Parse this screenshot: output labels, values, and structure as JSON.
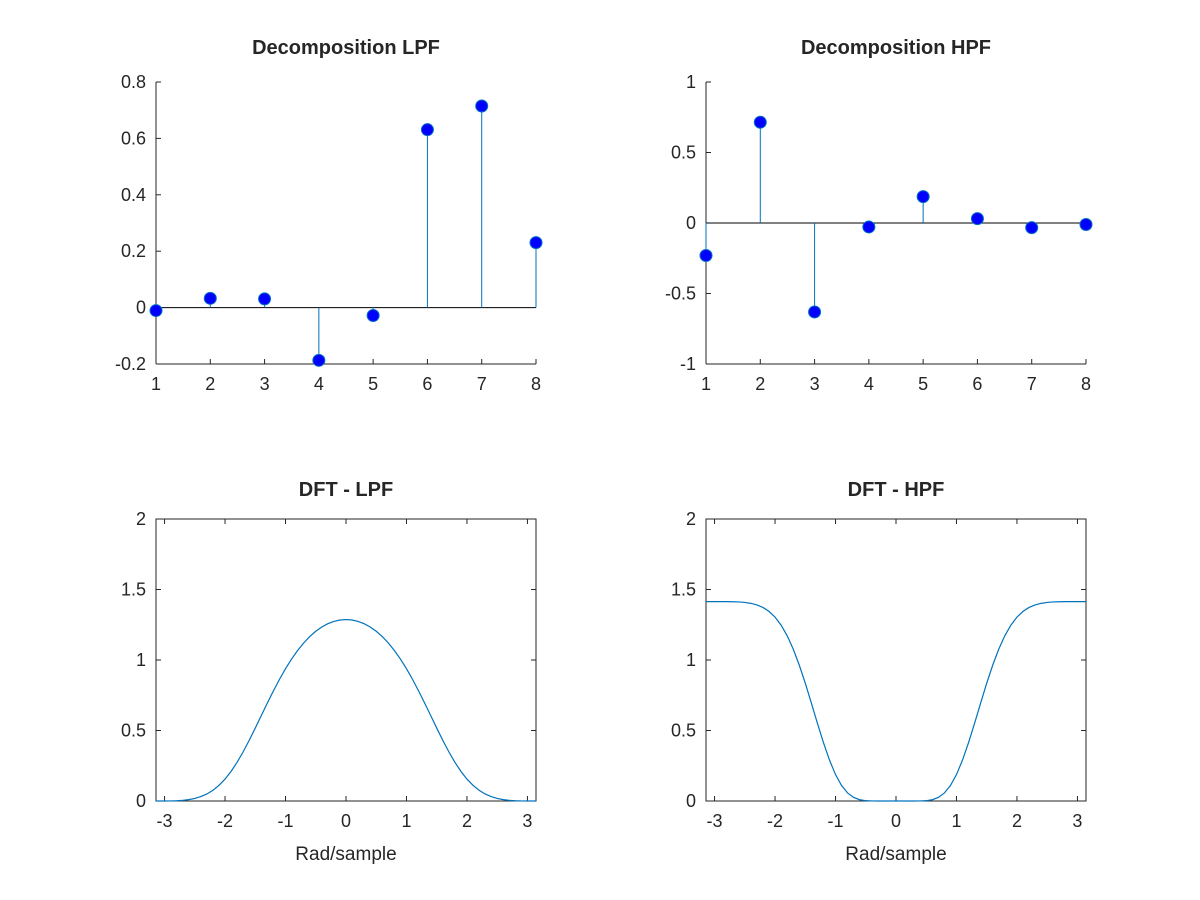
{
  "colors": {
    "line": "#0072bd",
    "marker": "#0000ff",
    "axis": "#262626",
    "background": "#ffffff"
  },
  "chart_data": [
    {
      "type": "stem",
      "title": "Decomposition LPF",
      "xlabel": "",
      "ylabel": "",
      "xlim": [
        1,
        8
      ],
      "ylim": [
        -0.2,
        0.8
      ],
      "x": [
        1,
        2,
        3,
        4,
        5,
        6,
        7,
        8
      ],
      "values": [
        -0.0106,
        0.0329,
        0.0308,
        -0.187,
        -0.028,
        0.6309,
        0.7148,
        0.2304
      ],
      "xticks": [
        "1",
        "2",
        "3",
        "4",
        "5",
        "6",
        "7",
        "8"
      ],
      "yticks": [
        "-0.2",
        "0",
        "0.2",
        "0.4",
        "0.6",
        "0.8"
      ],
      "baseline": 0,
      "grid": false
    },
    {
      "type": "stem",
      "title": "Decomposition HPF",
      "xlabel": "",
      "ylabel": "",
      "xlim": [
        1,
        8
      ],
      "ylim": [
        -1,
        1
      ],
      "x": [
        1,
        2,
        3,
        4,
        5,
        6,
        7,
        8
      ],
      "values": [
        -0.2304,
        0.7148,
        -0.6309,
        -0.028,
        0.187,
        0.0308,
        -0.0329,
        -0.0106
      ],
      "xticks": [
        "1",
        "2",
        "3",
        "4",
        "5",
        "6",
        "7",
        "8"
      ],
      "yticks": [
        "-1",
        "-0.5",
        "0",
        "0.5",
        "1"
      ],
      "baseline": 0,
      "grid": false
    },
    {
      "type": "line",
      "title": "DFT - LPF",
      "xlabel": "Rad/sample",
      "ylabel": "",
      "xlim": [
        -3.1416,
        3.1416
      ],
      "ylim": [
        0,
        2
      ],
      "x": [
        -3.1416,
        -3.0,
        -2.9,
        -2.8,
        -2.7,
        -2.6,
        -2.5,
        -2.4,
        -2.3,
        -2.2,
        -2.1,
        -2.0,
        -1.9,
        -1.8,
        -1.7,
        -1.6,
        -1.5,
        -1.4,
        -1.3,
        -1.2,
        -1.1,
        -1.0,
        -0.9,
        -0.8,
        -0.7,
        -0.6,
        -0.5,
        -0.4,
        -0.3,
        -0.2,
        -0.1,
        0.0,
        0.1,
        0.2,
        0.3,
        0.4,
        0.5,
        0.6,
        0.7,
        0.8,
        0.9,
        1.0,
        1.1,
        1.2,
        1.3,
        1.4,
        1.5,
        1.6,
        1.7,
        1.8,
        1.9,
        2.0,
        2.1,
        2.2,
        2.3,
        2.4,
        2.5,
        2.6,
        2.7,
        2.8,
        2.9,
        3.0,
        3.1416
      ],
      "values": [
        0.0,
        0.0001,
        0.0006,
        0.0019,
        0.0047,
        0.0098,
        0.0182,
        0.0311,
        0.0499,
        0.0761,
        0.111,
        0.1556,
        0.2103,
        0.2752,
        0.3492,
        0.4307,
        0.5173,
        0.6064,
        0.6952,
        0.7812,
        0.8627,
        0.9381,
        1.0066,
        1.0676,
        1.1208,
        1.1662,
        1.2039,
        1.2341,
        1.2573,
        1.2737,
        1.2835,
        1.2868,
        1.2835,
        1.2737,
        1.2573,
        1.2341,
        1.2039,
        1.1662,
        1.1208,
        1.0676,
        1.0066,
        0.9381,
        0.8627,
        0.7812,
        0.6952,
        0.6064,
        0.5173,
        0.4307,
        0.3492,
        0.2752,
        0.2103,
        0.1556,
        0.111,
        0.0761,
        0.0499,
        0.0311,
        0.0182,
        0.0098,
        0.0047,
        0.0019,
        0.0006,
        0.0001,
        0.0
      ],
      "xticks": [
        "-3",
        "-2",
        "-1",
        "0",
        "1",
        "2",
        "3"
      ],
      "yticks": [
        "0",
        "0.5",
        "1",
        "1.5",
        "2"
      ],
      "grid": false
    },
    {
      "type": "line",
      "title": "DFT - HPF",
      "xlabel": "Rad/sample",
      "ylabel": "",
      "xlim": [
        -3.1416,
        3.1416
      ],
      "ylim": [
        0,
        2
      ],
      "x": [
        -3.1416,
        -3.0,
        -2.9,
        -2.8,
        -2.7,
        -2.6,
        -2.5,
        -2.4,
        -2.3,
        -2.2,
        -2.1,
        -2.0,
        -1.9,
        -1.8,
        -1.7,
        -1.6,
        -1.5,
        -1.4,
        -1.3,
        -1.2,
        -1.1,
        -1.0,
        -0.9,
        -0.8,
        -0.7,
        -0.6,
        -0.5,
        -0.4,
        -0.3,
        -0.2,
        -0.1,
        0.0,
        0.1,
        0.2,
        0.3,
        0.4,
        0.5,
        0.6,
        0.7,
        0.8,
        0.9,
        1.0,
        1.1,
        1.2,
        1.3,
        1.4,
        1.5,
        1.6,
        1.7,
        1.8,
        1.9,
        2.0,
        2.1,
        2.2,
        2.3,
        2.4,
        2.5,
        2.6,
        2.7,
        2.8,
        2.9,
        3.0,
        3.1416
      ],
      "values": [
        1.4142,
        1.4142,
        1.4142,
        1.414,
        1.4133,
        1.4117,
        1.4083,
        1.4018,
        1.3907,
        1.3726,
        1.3448,
        1.3041,
        1.2475,
        1.1725,
        1.0779,
        0.9645,
        0.8352,
        0.6952,
        0.5521,
        0.4144,
        0.2905,
        0.1876,
        0.1097,
        0.0568,
        0.0251,
        0.009,
        0.0024,
        0.0004,
        0.0,
        0.0,
        0.0,
        0.0,
        0.0,
        0.0,
        0.0,
        0.0004,
        0.0024,
        0.009,
        0.0251,
        0.0568,
        0.1097,
        0.1876,
        0.2905,
        0.4144,
        0.5521,
        0.6952,
        0.8352,
        0.9645,
        1.0779,
        1.1725,
        1.2475,
        1.3041,
        1.3448,
        1.3726,
        1.3907,
        1.4018,
        1.4083,
        1.4117,
        1.4133,
        1.414,
        1.4142,
        1.4142,
        1.4142
      ],
      "xticks": [
        "-3",
        "-2",
        "-1",
        "0",
        "1",
        "2",
        "3"
      ],
      "yticks": [
        "0",
        "0.5",
        "1",
        "1.5",
        "2"
      ],
      "grid": false
    }
  ]
}
